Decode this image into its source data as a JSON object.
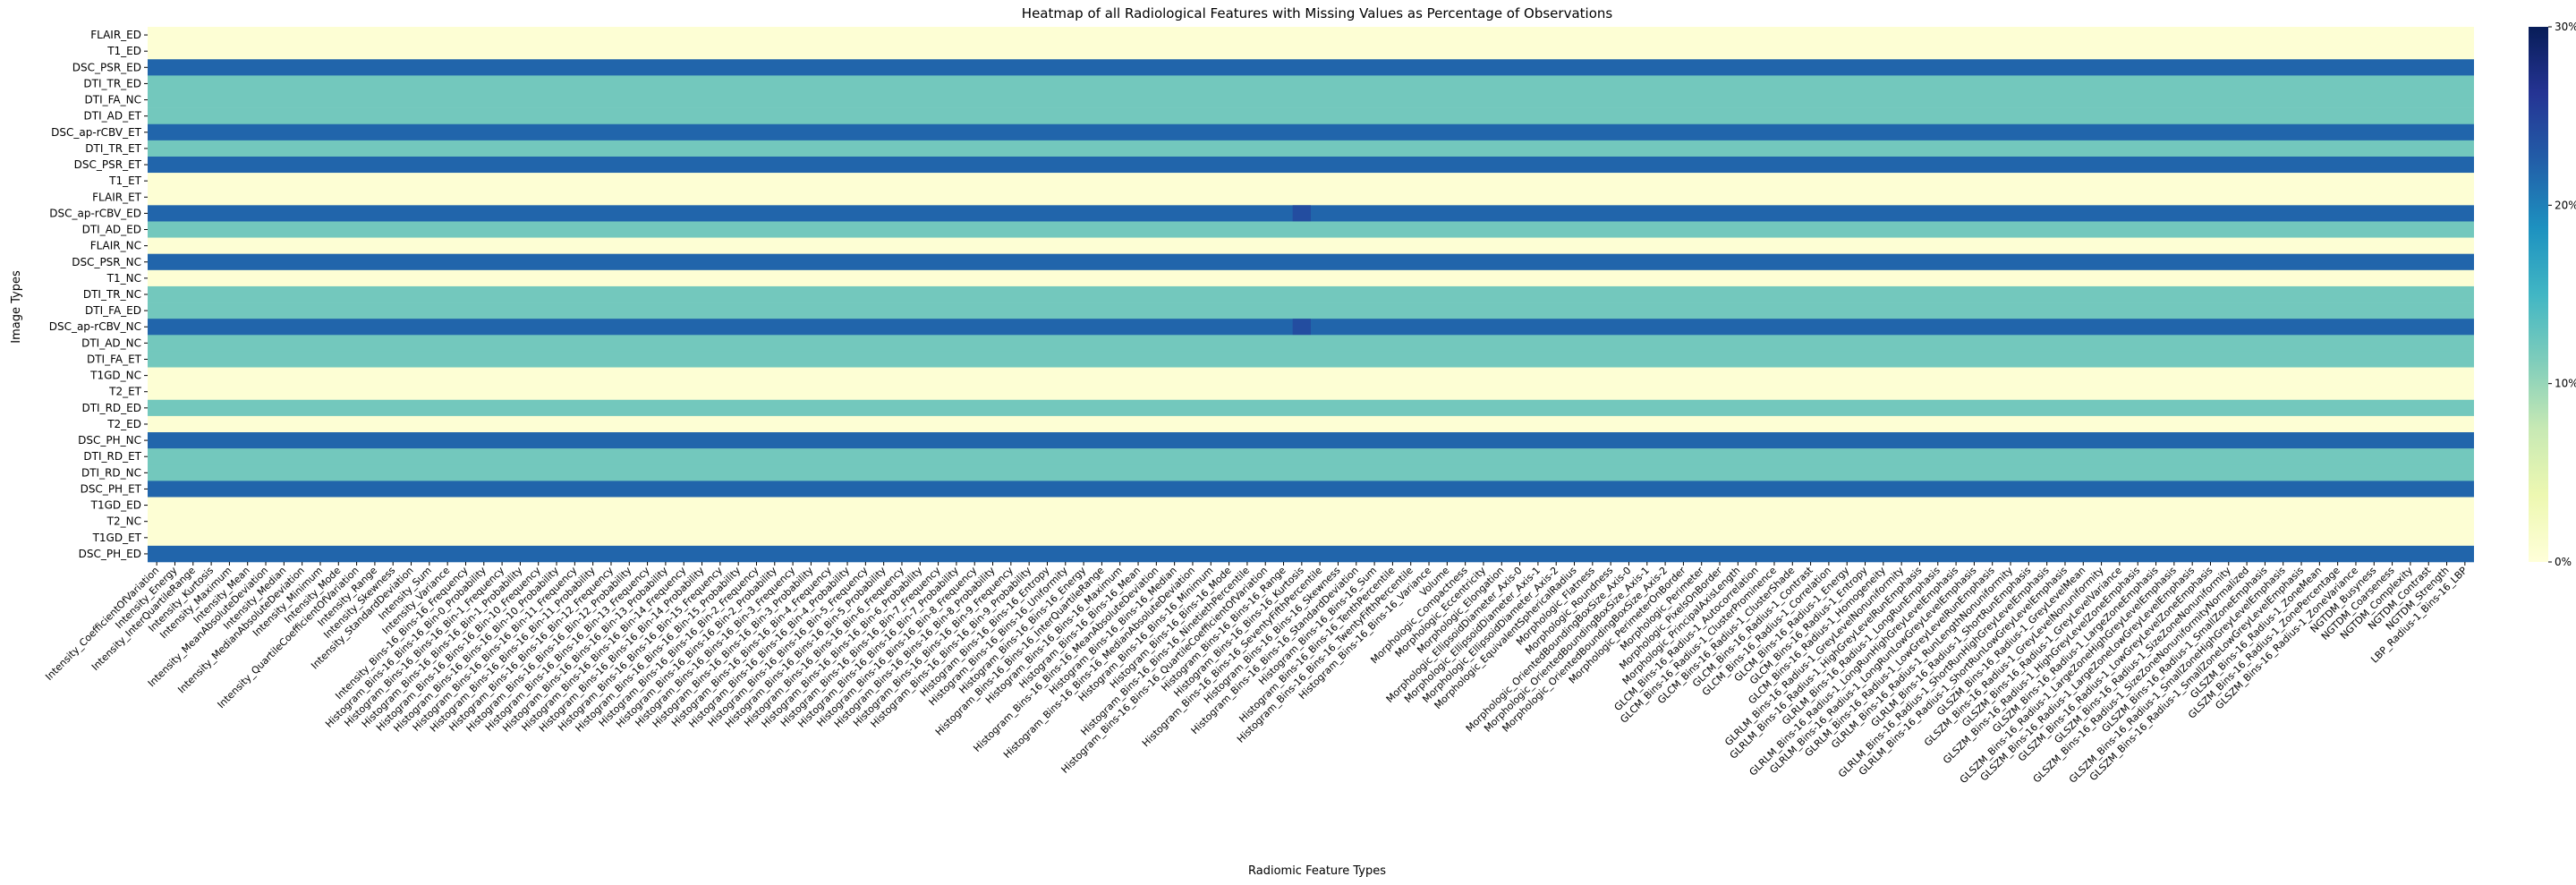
{
  "chart_data": {
    "type": "heatmap",
    "title": "Heatmap of all Radiological Features with Missing Values as Percentage of Observations",
    "xlabel": "Radiomic Feature Types",
    "ylabel": "Image Types",
    "colormap": "YlGnBu",
    "vmin": 0,
    "vmax": 30,
    "colorbar_ticks": [
      0,
      10,
      20,
      30
    ],
    "colorbar_tick_labels": [
      "0%",
      "10%",
      "20%",
      "30%"
    ],
    "rows": [
      "FLAIR_ED",
      "T1_ED",
      "DSC_PSR_ED",
      "DTI_TR_ED",
      "DTI_FA_NC",
      "DTI_AD_ET",
      "DSC_ap-rCBV_ET",
      "DTI_TR_ET",
      "DSC_PSR_ET",
      "T1_ET",
      "FLAIR_ET",
      "DSC_ap-rCBV_ED",
      "DTI_AD_ED",
      "FLAIR_NC",
      "DSC_PSR_NC",
      "T1_NC",
      "DTI_TR_NC",
      "DTI_FA_ED",
      "DSC_ap-rCBV_NC",
      "DTI_AD_NC",
      "DTI_FA_ET",
      "T1GD_NC",
      "T2_ET",
      "DTI_RD_ED",
      "T2_ED",
      "DSC_PH_NC",
      "DTI_RD_ET",
      "DTI_RD_NC",
      "DSC_PH_ET",
      "T1GD_ED",
      "T2_NC",
      "T1GD_ET",
      "DSC_PH_ED"
    ],
    "row_missing_percent": [
      0.5,
      0.5,
      22,
      12,
      12,
      12,
      22,
      12,
      22,
      0.5,
      0.5,
      22,
      12,
      0.5,
      22,
      0.5,
      12,
      12,
      22,
      12,
      12,
      0.5,
      0.5,
      12,
      0.5,
      22,
      12,
      12,
      22,
      0.5,
      0.5,
      0.5,
      22
    ],
    "hotspot_column": "Histogram_Bins-16_Bins-16_Kurtosis",
    "hotspot_rows": [
      "DSC_ap-rCBV_ED",
      "DSC_ap-rCBV_NC"
    ],
    "hotspot_missing_percent": 24,
    "columns": [
      "Intensity_CoefficientOfVariation",
      "Intensity_Energy",
      "Intensity_InterQuartileRange",
      "Intensity_Kurtosis",
      "Intensity_Maximum",
      "Intensity_Mean",
      "Intensity_MeanAbsoluteDeviation",
      "Intensity_Median",
      "Intensity_MedianAbsoluteDeviation",
      "Intensity_Minimum",
      "Intensity_Mode",
      "Intensity_QuartileCoefficientOfVariation",
      "Intensity_Range",
      "Intensity_Skewness",
      "Intensity_StandardDeviation",
      "Intensity_Sum",
      "Intensity_Variance",
      "Intensity_Bins-16_Bins-16_Frequency",
      "Histogram_Bins-16_Bins-16_Bin-0_Probability",
      "Histogram_Bins-16_Bins-16_Bin-1_Frequency",
      "Histogram_Bins-16_Bins-16_Bin-1_Probability",
      "Histogram_Bins-16_Bins-16_Bin-10_Frequency",
      "Histogram_Bins-16_Bins-16_Bin-10_Probability",
      "Histogram_Bins-16_Bins-16_Bin-11_Frequency",
      "Histogram_Bins-16_Bins-16_Bin-11_Probability",
      "Histogram_Bins-16_Bins-16_Bin-12_Frequency",
      "Histogram_Bins-16_Bins-16_Bin-12_Probability",
      "Histogram_Bins-16_Bins-16_Bin-13_Frequency",
      "Histogram_Bins-16_Bins-16_Bin-13_Probability",
      "Histogram_Bins-16_Bins-16_Bin-14_Frequency",
      "Histogram_Bins-16_Bins-16_Bin-14_Probability",
      "Histogram_Bins-16_Bins-16_Bin-15_Frequency",
      "Histogram_Bins-16_Bins-16_Bin-15_Probability",
      "Histogram_Bins-16_Bins-16_Bin-2_Frequency",
      "Histogram_Bins-16_Bins-16_Bin-2_Probability",
      "Histogram_Bins-16_Bins-16_Bin-3_Frequency",
      "Histogram_Bins-16_Bins-16_Bin-3_Probability",
      "Histogram_Bins-16_Bins-16_Bin-4_Frequency",
      "Histogram_Bins-16_Bins-16_Bin-4_Probability",
      "Histogram_Bins-16_Bins-16_Bin-5_Frequency",
      "Histogram_Bins-16_Bins-16_Bin-5_Probability",
      "Histogram_Bins-16_Bins-16_Bin-6_Frequency",
      "Histogram_Bins-16_Bins-16_Bin-6_Probability",
      "Histogram_Bins-16_Bins-16_Bin-7_Frequency",
      "Histogram_Bins-16_Bins-16_Bin-7_Probability",
      "Histogram_Bins-16_Bins-16_Bin-8_Frequency",
      "Histogram_Bins-16_Bins-16_Bin-8_Probability",
      "Histogram_Bins-16_Bins-16_Bin-9_Frequency",
      "Histogram_Bins-16_Bins-16_Bin-9_Probability",
      "Histogram_Bins-16_Bins-16_Entropy",
      "Histogram_Bins-16_Bins-16_Uniformity",
      "Histogram_Bins-16_Bins-16_Energy",
      "Histogram_Bins-16_Bins-16_InterQuartileRange",
      "Histogram_Bins-16_Bins-16_Maximum",
      "Histogram_Bins-16_Bins-16_Mean",
      "Histogram_Bins-16_Bins-16_MeanAbsoluteDeviation",
      "Histogram_Bins-16_Bins-16_Median",
      "Histogram_Bins-16_Bins-16_MedianAbsoluteDeviation",
      "Histogram_Bins-16_Bins-16_Minimum",
      "Histogram_Bins-16_Bins-16_Mode",
      "Histogram_Bins-16_Bins-16_NinetiethPercentile",
      "Histogram_Bins-16_Bins-16_QuartileCoefficientOfVariation",
      "Histogram_Bins-16_Bins-16_Range",
      "Histogram_Bins-16_Bins-16_Kurtosis",
      "Histogram_Bins-16_Bins-16_SeventyFifthPercentile",
      "Histogram_Bins-16_Bins-16_Skewness",
      "Histogram_Bins-16_Bins-16_StandardDeviation",
      "Histogram_Bins-16_Bins-16_Sum",
      "Histogram_Bins-16_Bins-16_TenthPercentile",
      "Histogram_Bins-16_Bins-16_TwentyFifthPercentile",
      "Histogram_Bins-16_Bins-16_Variance",
      "Volume",
      "Morphologic_Compactness",
      "Morphologic_Eccentricity",
      "Morphologic_Elongation",
      "Morphologic_EllipsoidDiameter_Axis-0",
      "Morphologic_EllipsoidDiameter_Axis-1",
      "Morphologic_EllipsoidDiameter_Axis-2",
      "Morphologic_EquivalentSphericalRadius",
      "Morphologic_Flatness",
      "Morphologic_Roundness",
      "Morphologic_OrientedBoundingBoxSize_Axis-0",
      "Morphologic_OrientedBoundingBoxSize_Axis-1",
      "Morphologic_OrientedBoundingBoxSize_Axis-2",
      "Morphologic_PerimeterOnBorder",
      "Morphologic_Perimeter",
      "Morphologic_PixelsOnBorder",
      "Morphologic_PrincipalAxisLength",
      "GLCM_Bins-16_Radius-1_Autocorrelation",
      "GLCM_Bins-16_Radius-1_ClusterProminence",
      "GLCM_Bins-16_Radius-1_ClusterShade",
      "GLCM_Bins-16_Radius-1_Contrast",
      "GLCM_Bins-16_Radius-1_Correlation",
      "GLCM_Bins-16_Radius-1_Energy",
      "GLCM_Bins-16_Radius-1_Entropy",
      "GLCM_Bins-16_Radius-1_Homogeneity",
      "GLRLM_Bins-16_Radius-1_GreyLevelNonuniformity",
      "GLRLM_Bins-16_Radius-1_HighGreyLevelRunEmphasis",
      "GLRLM_Bins-16_Radius-1_LongRunEmphasis",
      "GLRLM_Bins-16_Radius-1_LongRunHighGreyLevelEmphasis",
      "GLRLM_Bins-16_Radius-1_LongRunLowGreyLevelEmphasis",
      "GLRLM_Bins-16_Radius-1_LowGreyLevelRunEmphasis",
      "GLRLM_Bins-16_Radius-1_RunLengthNonuniformity",
      "GLRLM_Bins-16_Radius-1_ShortRunEmphasis",
      "GLRLM_Bins-16_Radius-1_ShortRunHighGreyLevelEmphasis",
      "GLRLM_Bins-16_Radius-1_ShortRunLowGreyLevelEmphasis",
      "GLSZM_Bins-16_Radius-1_GreyLevelMean",
      "GLSZM_Bins-16_Radius-1_GreyLevelNonuniformity",
      "GLSZM_Bins-16_Radius-1_GreyLevelVariance",
      "GLSZM_Bins-16_Radius-1_HighGreyLevelZoneEmphasis",
      "GLSZM_Bins-16_Radius-1_LargeZoneEmphasis",
      "GLSZM_Bins-16_Radius-1_LargeZoneHighGreyLevelEmphasis",
      "GLSZM_Bins-16_Radius-1_LargeZoneLowGreyLevelEmphasis",
      "GLSZM_Bins-16_Radius-1_LowGreyLevelZoneEmphasis",
      "GLSZM_Bins-16_Radius-1_SizeZoneNonuniformity",
      "GLSZM_Bins-16_Radius-1_SizeZoneNonuniformityNormalized",
      "GLSZM_Bins-16_Radius-1_SmallZoneEmphasis",
      "GLSZM_Bins-16_Radius-1_SmallZoneHighGreyLevelEmphasis",
      "GLSZM_Bins-16_Radius-1_SmallZoneLowGreyLevelEmphasis",
      "GLSZM_Bins-16_Radius-1_ZoneMean",
      "GLSZM_Bins-16_Radius-1_ZonePercentage",
      "GLSZM_Bins-16_Radius-1_ZoneVariance",
      "NGTDM_Busyness",
      "NGTDM_Coarseness",
      "NGTDM_Complexity",
      "NGTDM_Contrast",
      "NGTDM_Strength",
      "LBP_Radius-1_Bins-16_LBP"
    ]
  }
}
